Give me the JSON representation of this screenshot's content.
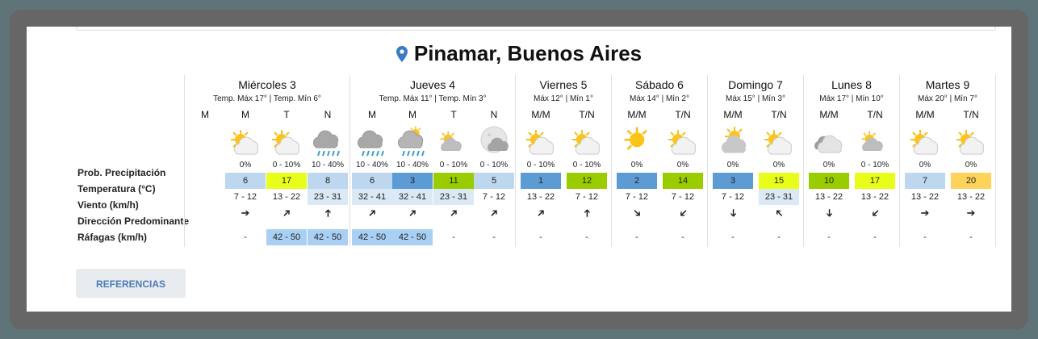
{
  "location": {
    "icon": "map-pin-icon",
    "name": "Pinamar, Buenos Aires"
  },
  "row_labels": [
    "Prob. Precipitación",
    "Temperatura (°C)",
    "Viento (km/h)",
    "Dirección Predominante",
    "Ráfagas (km/h)"
  ],
  "colors": {
    "precip_low": "#bcd7ee",
    "precip_mid": "#5d9bd5",
    "gust": "#a9d0f3",
    "wind_light": "#dbe8f5",
    "temp_3": "#5d9bd5",
    "temp_5_8": "#bcd7ee",
    "temp_10_14": "#9acd00",
    "temp_15_17": "#e8fd1a",
    "temp_20": "#fdd35a",
    "temp_23": "#e8fd1a"
  },
  "days": [
    {
      "name": "Miércoles 3",
      "sub": "Temp. Máx 17° | Temp. Mín 6°",
      "periods": [
        {
          "slot": "M",
          "icon": null,
          "prob": "",
          "temp": "",
          "temp_color": null,
          "wind": "",
          "wind_color": null,
          "dir": "",
          "gust": "",
          "gust_color": null
        },
        {
          "slot": "M",
          "icon": "sun-cloud-icon",
          "prob": "0%",
          "temp": "6",
          "temp_color": "#bcd7ee",
          "wind": "7 - 12",
          "wind_color": null,
          "dir": "➔",
          "dir_deg": 0,
          "gust": "-",
          "gust_color": null
        },
        {
          "slot": "T",
          "icon": "sun-cloud-icon",
          "prob": "0 - 10%",
          "temp": "17",
          "temp_color": "#e8fd1a",
          "wind": "13 - 22",
          "wind_color": null,
          "dir": "➔",
          "dir_deg": -45,
          "gust": "42 - 50",
          "gust_color": "#a9d0f3"
        },
        {
          "slot": "N",
          "icon": "rain-cloud-icon",
          "prob": "10 - 40%",
          "temp": "8",
          "temp_color": "#bcd7ee",
          "wind": "23 - 31",
          "wind_color": "#dbe8f5",
          "dir": "➔",
          "dir_deg": -90,
          "gust": "42 - 50",
          "gust_color": "#a9d0f3"
        }
      ]
    },
    {
      "name": "Jueves 4",
      "sub": "Temp. Máx 11° | Temp. Mín 3°",
      "periods": [
        {
          "slot": "M",
          "icon": "rain-cloud-icon",
          "prob": "10 - 40%",
          "temp": "6",
          "temp_color": "#bcd7ee",
          "wind": "32 - 41",
          "wind_color": "#dbe8f5",
          "dir": "➔",
          "dir_deg": -45,
          "gust": "42 - 50",
          "gust_color": "#a9d0f3"
        },
        {
          "slot": "M",
          "icon": "rain-sun-cloud-icon",
          "prob": "10 - 40%",
          "temp": "3",
          "temp_color": "#5d9bd5",
          "wind": "32 - 41",
          "wind_color": "#dbe8f5",
          "dir": "➔",
          "dir_deg": -45,
          "gust": "42 - 50",
          "gust_color": "#a9d0f3"
        },
        {
          "slot": "T",
          "icon": "sun-cloud-small-icon",
          "prob": "0 - 10%",
          "temp": "11",
          "temp_color": "#9acd00",
          "wind": "23 - 31",
          "wind_color": "#dbe8f5",
          "dir": "➔",
          "dir_deg": -45,
          "gust": "-",
          "gust_color": null
        },
        {
          "slot": "N",
          "icon": "moon-cloud-icon",
          "prob": "0 - 10%",
          "temp": "5",
          "temp_color": "#bcd7ee",
          "wind": "7 - 12",
          "wind_color": null,
          "dir": "➔",
          "dir_deg": -45,
          "gust": "-",
          "gust_color": null
        }
      ]
    },
    {
      "name": "Viernes 5",
      "sub": "Máx 12° | Mín 1°",
      "periods": [
        {
          "slot": "M/M",
          "icon": "sun-cloud-icon",
          "prob": "0 - 10%",
          "temp": "1",
          "temp_color": "#5d9bd5",
          "wind": "13 - 22",
          "wind_color": null,
          "dir": "➔",
          "dir_deg": -45,
          "gust": "-",
          "gust_color": null
        },
        {
          "slot": "T/N",
          "icon": "sun-cloud-icon",
          "prob": "0 - 10%",
          "temp": "12",
          "temp_color": "#9acd00",
          "wind": "7 - 12",
          "wind_color": null,
          "dir": "➔",
          "dir_deg": -90,
          "gust": "-",
          "gust_color": null
        }
      ]
    },
    {
      "name": "Sábado 6",
      "sub": "Máx 14° | Mín 2°",
      "periods": [
        {
          "slot": "M/M",
          "icon": "sun-icon",
          "prob": "0%",
          "temp": "2",
          "temp_color": "#5d9bd5",
          "wind": "7 - 12",
          "wind_color": null,
          "dir": "➔",
          "dir_deg": 45,
          "gust": "-",
          "gust_color": null
        },
        {
          "slot": "T/N",
          "icon": "sun-cloud-icon",
          "prob": "0%",
          "temp": "14",
          "temp_color": "#9acd00",
          "wind": "7 - 12",
          "wind_color": null,
          "dir": "➔",
          "dir_deg": 135,
          "gust": "-",
          "gust_color": null
        }
      ]
    },
    {
      "name": "Domingo 7",
      "sub": "Máx 15° | Mín 3°",
      "periods": [
        {
          "slot": "M/M",
          "icon": "sun-behind-cloud-icon",
          "prob": "0%",
          "temp": "3",
          "temp_color": "#5d9bd5",
          "wind": "7 - 12",
          "wind_color": null,
          "dir": "➔",
          "dir_deg": 90,
          "gust": "-",
          "gust_color": null
        },
        {
          "slot": "T/N",
          "icon": "sun-cloud-icon",
          "prob": "0%",
          "temp": "15",
          "temp_color": "#e8fd1a",
          "wind": "23 - 31",
          "wind_color": "#dbe8f5",
          "dir": "➔",
          "dir_deg": -135,
          "gust": "-",
          "gust_color": null
        }
      ]
    },
    {
      "name": "Lunes 8",
      "sub": "Máx 17° | Mín 10°",
      "periods": [
        {
          "slot": "M/M",
          "icon": "cloud-icon",
          "prob": "0%",
          "temp": "10",
          "temp_color": "#9acd00",
          "wind": "13 - 22",
          "wind_color": null,
          "dir": "➔",
          "dir_deg": 90,
          "gust": "-",
          "gust_color": null
        },
        {
          "slot": "T/N",
          "icon": "sun-cloud-small-icon",
          "prob": "0 - 10%",
          "temp": "17",
          "temp_color": "#e8fd1a",
          "wind": "13 - 22",
          "wind_color": null,
          "dir": "➔",
          "dir_deg": 135,
          "gust": "-",
          "gust_color": null
        }
      ]
    },
    {
      "name": "Martes 9",
      "sub": "Máx 20° | Mín 7°",
      "periods": [
        {
          "slot": "M/M",
          "icon": "sun-cloud-icon",
          "prob": "0%",
          "temp": "7",
          "temp_color": "#bcd7ee",
          "wind": "13 - 22",
          "wind_color": null,
          "dir": "➔",
          "dir_deg": 0,
          "gust": "-",
          "gust_color": null
        },
        {
          "slot": "T/N",
          "icon": "sun-cloud-icon",
          "prob": "0%",
          "temp": "20",
          "temp_color": "#fdd35a",
          "wind": "13 - 22",
          "wind_color": null,
          "dir": "➔",
          "dir_deg": 0,
          "gust": "-",
          "gust_color": null
        }
      ]
    }
  ],
  "button": {
    "label": "REFERENCIAS"
  }
}
